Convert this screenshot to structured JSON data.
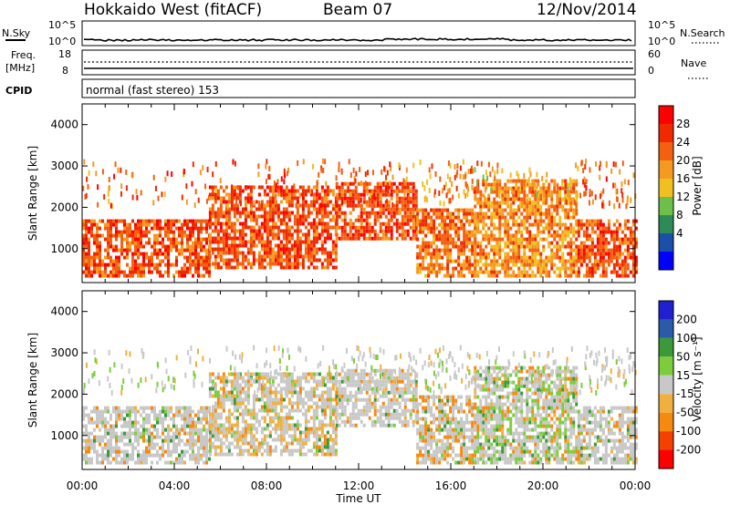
{
  "header": {
    "title": "Hokkaido West (fitACF)",
    "beam": "Beam 07",
    "date": "12/Nov/2014"
  },
  "strips": {
    "nsky_label": "N.Sky",
    "nsearch_label": "N.Search",
    "freq_label_1": "Freq.",
    "freq_label_2": "[MHz]",
    "nave_label": "Nave",
    "cpid_label": "CPID",
    "cpid_text": "normal (fast stereo) 153",
    "noise_ticks_left": [
      "10^5",
      "10^0"
    ],
    "noise_ticks_right": [
      "10^5",
      "10^0"
    ],
    "freq_ticks": [
      "18",
      "8"
    ],
    "nave_ticks": [
      "60",
      "0"
    ]
  },
  "colors": {
    "power_scale": [
      "#0000ff",
      "#1a50a8",
      "#2e8b57",
      "#6cc04a",
      "#f0c020",
      "#f59a20",
      "#f46010",
      "#f02a00",
      "#ff0000"
    ],
    "velocity_scale": [
      "#ff0000",
      "#f44000",
      "#f68a10",
      "#f0b040",
      "#c8c8c8",
      "#7ccc3c",
      "#3a9a3a",
      "#2a5aa8",
      "#2020d0"
    ]
  },
  "colorbars": {
    "power": {
      "label": "Power [dB]",
      "ticks": [
        "28",
        "24",
        "20",
        "16",
        "12",
        "8",
        "4"
      ]
    },
    "velocity": {
      "label": "Velocity [m s⁻¹]",
      "ticks": [
        "200",
        "100",
        "50",
        "15",
        "-15",
        "-50",
        "-100",
        "-200"
      ]
    }
  },
  "chart_data": [
    {
      "type": "heatmap",
      "panel": "power",
      "ylabel": "Slant Range [km]",
      "xlabel": "",
      "ylim": [
        180,
        4500
      ],
      "yticks": [
        1000,
        2000,
        3000,
        4000
      ],
      "ytick_labels": [
        "1000",
        "2000",
        "3000",
        "4000"
      ],
      "xlim": [
        0,
        24
      ],
      "scale_unit": "dB",
      "echo_bands": [
        {
          "t0": 0.0,
          "t1": 5.5,
          "r0": 300,
          "r1": 1700,
          "level": 28
        },
        {
          "t0": 5.5,
          "t1": 11.0,
          "r0": 500,
          "r1": 2500,
          "level": 28
        },
        {
          "t0": 11.0,
          "t1": 14.5,
          "r0": 1200,
          "r1": 2550,
          "level": 28
        },
        {
          "t0": 14.5,
          "t1": 17.0,
          "r0": 300,
          "r1": 1900,
          "level": 26
        },
        {
          "t0": 17.0,
          "t1": 21.5,
          "r0": 300,
          "r1": 2600,
          "level": 24
        },
        {
          "t0": 21.5,
          "t1": 24.0,
          "r0": 300,
          "r1": 1700,
          "level": 28
        }
      ]
    },
    {
      "type": "heatmap",
      "panel": "velocity",
      "ylabel": "Slant Range [km]",
      "xlabel": "Time UT",
      "ylim": [
        180,
        4500
      ],
      "yticks": [
        1000,
        2000,
        3000,
        4000
      ],
      "ytick_labels": [
        "1000",
        "2000",
        "3000",
        "4000"
      ],
      "xlim": [
        0,
        24
      ],
      "xticks": [
        0,
        4,
        8,
        12,
        16,
        20,
        24
      ],
      "xtick_labels": [
        "00:00",
        "04:00",
        "08:00",
        "12:00",
        "16:00",
        "20:00",
        "00:00"
      ],
      "scale_unit": "m s⁻¹",
      "echo_bands": [
        {
          "t0": 0.0,
          "t1": 5.5,
          "r0": 300,
          "r1": 1700,
          "level": 0
        },
        {
          "t0": 5.5,
          "t1": 11.0,
          "r0": 500,
          "r1": 2500,
          "level": -20
        },
        {
          "t0": 11.0,
          "t1": 14.5,
          "r0": 1200,
          "r1": 2550,
          "level": 0
        },
        {
          "t0": 14.5,
          "t1": 17.0,
          "r0": 300,
          "r1": 1900,
          "level": -60
        },
        {
          "t0": 17.0,
          "t1": 21.5,
          "r0": 300,
          "r1": 2600,
          "level": 30
        },
        {
          "t0": 21.5,
          "t1": 24.0,
          "r0": 300,
          "r1": 1700,
          "level": 0
        }
      ]
    }
  ]
}
